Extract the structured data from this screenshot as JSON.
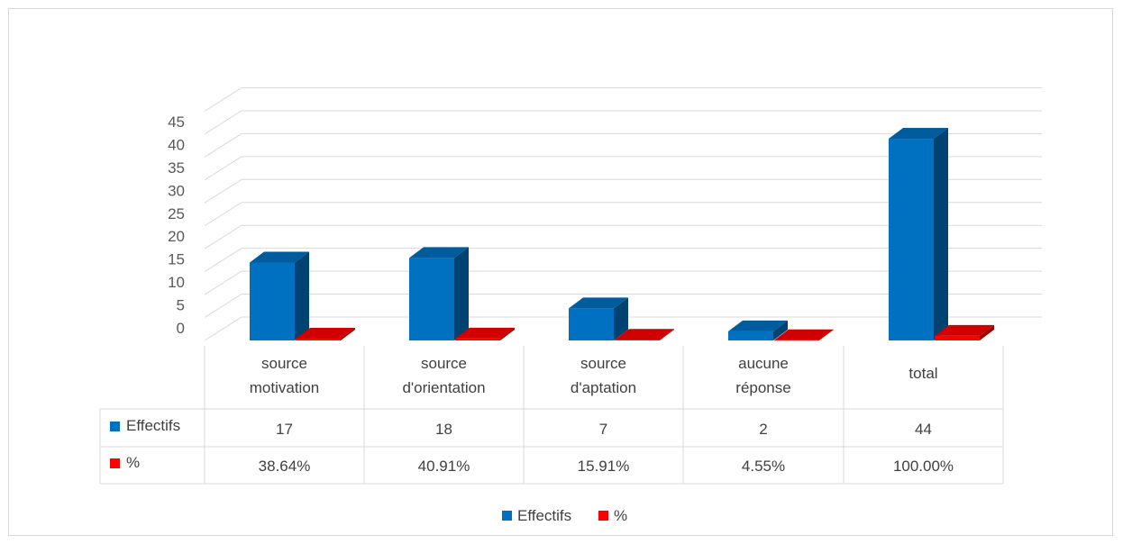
{
  "chart_data": {
    "type": "bar",
    "title": "",
    "xlabel": "",
    "ylabel": "",
    "categories": [
      [
        "source",
        "motivation"
      ],
      [
        "source",
        "d'orientation"
      ],
      [
        "source",
        "d'aptation"
      ],
      [
        "aucune",
        "réponse"
      ],
      [
        "total"
      ]
    ],
    "series": [
      {
        "name": "Effectifs",
        "values": [
          17,
          18,
          7,
          2,
          44
        ],
        "labels": [
          "17",
          "18",
          "7",
          "2",
          "44"
        ],
        "color": "#0070c0"
      },
      {
        "name": "%",
        "values": [
          0.3864,
          0.4091,
          0.1591,
          0.0455,
          1.0
        ],
        "labels": [
          "38.64%",
          "40.91%",
          "15.91%",
          "4.55%",
          "100.00%"
        ],
        "color": "#ff0000"
      }
    ],
    "ylim": [
      0,
      45
    ],
    "yticks": [
      "0",
      "5",
      "10",
      "15",
      "20",
      "25",
      "30",
      "35",
      "40",
      "45"
    ],
    "grid": true,
    "style": "3d-column",
    "data_table": true,
    "legend": "bottom"
  }
}
